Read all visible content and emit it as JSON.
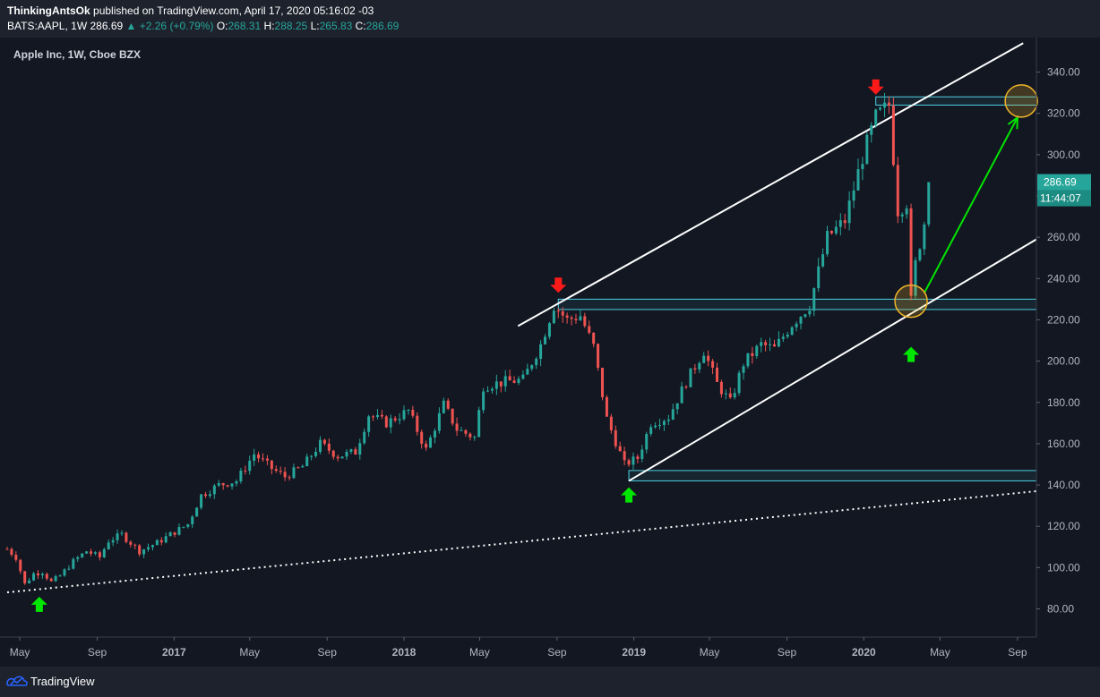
{
  "header": {
    "author": "ThinkingAntsOk",
    "published": "published on TradingView.com, April 17, 2020 05:16:02 -03",
    "symbol": "BATS:AAPL, 1W",
    "last": "286.69",
    "change": "▲ +2.26 (+0.79%)",
    "o_label": "O:",
    "o": "268.31",
    "h_label": "H:",
    "h": "288.25",
    "l_label": "L:",
    "l": "265.83",
    "c_label": "C:",
    "c": "286.69"
  },
  "footer": {
    "brand": "TradingView",
    "logo_icon": "tradingview-logo-icon"
  },
  "colors": {
    "background": "#131722",
    "up": "#26a69a",
    "down": "#ef5350",
    "zone": "#4dd0e1",
    "arrow_up": "#00e600",
    "arrow_down": "#ff1a1a",
    "circle": "#f0b429",
    "axis_text": "#b2b5be"
  },
  "chart_data": {
    "type": "candlestick",
    "title": "Apple Inc, 1W, Cboe BZX",
    "ylim": [
      70,
      350
    ],
    "y_ticks": [
      80,
      100,
      120,
      140,
      160,
      180,
      200,
      220,
      240,
      260,
      280,
      300,
      320,
      340
    ],
    "x_range": [
      "2016-04-11",
      "2020-10-01"
    ],
    "x_ticks": [
      {
        "label": "May",
        "date": "2016-05-01"
      },
      {
        "label": "Sep",
        "date": "2016-09-01"
      },
      {
        "label": "2017",
        "date": "2017-01-01"
      },
      {
        "label": "May",
        "date": "2017-05-01"
      },
      {
        "label": "Sep",
        "date": "2017-09-01"
      },
      {
        "label": "2018",
        "date": "2018-01-01"
      },
      {
        "label": "May",
        "date": "2018-05-01"
      },
      {
        "label": "Sep",
        "date": "2018-09-01"
      },
      {
        "label": "2019",
        "date": "2019-01-01"
      },
      {
        "label": "May",
        "date": "2019-05-01"
      },
      {
        "label": "Sep",
        "date": "2019-09-01"
      },
      {
        "label": "2020",
        "date": "2020-01-01"
      },
      {
        "label": "May",
        "date": "2020-05-01"
      },
      {
        "label": "Sep",
        "date": "2020-09-01"
      }
    ],
    "last_price": {
      "label": "286.69",
      "value": 286.69
    },
    "countdown": "11:44:07",
    "series": [
      {
        "date": "2016-04-11",
        "close": 109
      },
      {
        "date": "2016-04-25",
        "close": 105
      },
      {
        "date": "2016-05-09",
        "close": 92
      },
      {
        "date": "2016-05-23",
        "close": 97
      },
      {
        "date": "2016-06-06",
        "close": 98
      },
      {
        "date": "2016-06-20",
        "close": 93
      },
      {
        "date": "2016-07-04",
        "close": 96
      },
      {
        "date": "2016-07-25",
        "close": 103
      },
      {
        "date": "2016-08-15",
        "close": 108
      },
      {
        "date": "2016-09-05",
        "close": 105
      },
      {
        "date": "2016-09-19",
        "close": 113
      },
      {
        "date": "2016-10-10",
        "close": 116
      },
      {
        "date": "2016-11-07",
        "close": 108
      },
      {
        "date": "2016-12-05",
        "close": 112
      },
      {
        "date": "2016-12-26",
        "close": 116
      },
      {
        "date": "2017-01-23",
        "close": 121
      },
      {
        "date": "2017-02-13",
        "close": 135
      },
      {
        "date": "2017-03-13",
        "close": 140
      },
      {
        "date": "2017-04-10",
        "close": 142
      },
      {
        "date": "2017-05-08",
        "close": 155
      },
      {
        "date": "2017-06-05",
        "close": 148
      },
      {
        "date": "2017-06-26",
        "close": 144
      },
      {
        "date": "2017-07-24",
        "close": 149
      },
      {
        "date": "2017-08-21",
        "close": 160
      },
      {
        "date": "2017-09-18",
        "close": 154
      },
      {
        "date": "2017-10-16",
        "close": 156
      },
      {
        "date": "2017-11-06",
        "close": 174
      },
      {
        "date": "2017-12-04",
        "close": 170
      },
      {
        "date": "2018-01-08",
        "close": 176
      },
      {
        "date": "2018-02-05",
        "close": 157
      },
      {
        "date": "2018-03-05",
        "close": 179
      },
      {
        "date": "2018-03-26",
        "close": 167
      },
      {
        "date": "2018-04-23",
        "close": 163
      },
      {
        "date": "2018-05-07",
        "close": 188
      },
      {
        "date": "2018-06-11",
        "close": 190
      },
      {
        "date": "2018-07-09",
        "close": 191
      },
      {
        "date": "2018-08-06",
        "close": 208
      },
      {
        "date": "2018-08-27",
        "close": 227
      },
      {
        "date": "2018-09-17",
        "close": 220
      },
      {
        "date": "2018-10-08",
        "close": 222
      },
      {
        "date": "2018-10-29",
        "close": 207
      },
      {
        "date": "2018-11-19",
        "close": 172
      },
      {
        "date": "2018-12-17",
        "close": 150
      },
      {
        "date": "2019-01-07",
        "close": 153
      },
      {
        "date": "2019-01-28",
        "close": 170
      },
      {
        "date": "2019-02-25",
        "close": 173
      },
      {
        "date": "2019-03-25",
        "close": 190
      },
      {
        "date": "2019-04-22",
        "close": 205
      },
      {
        "date": "2019-05-13",
        "close": 189
      },
      {
        "date": "2019-06-03",
        "close": 180
      },
      {
        "date": "2019-06-24",
        "close": 199
      },
      {
        "date": "2019-07-22",
        "close": 208
      },
      {
        "date": "2019-08-12",
        "close": 206
      },
      {
        "date": "2019-09-09",
        "close": 218
      },
      {
        "date": "2019-10-07",
        "close": 227
      },
      {
        "date": "2019-11-04",
        "close": 260
      },
      {
        "date": "2019-12-02",
        "close": 268
      },
      {
        "date": "2019-12-30",
        "close": 299
      },
      {
        "date": "2020-01-20",
        "close": 318
      },
      {
        "date": "2020-02-10",
        "close": 324
      },
      {
        "date": "2020-02-24",
        "close": 273
      },
      {
        "date": "2020-03-09",
        "close": 277
      },
      {
        "date": "2020-03-16",
        "close": 229
      },
      {
        "date": "2020-03-23",
        "close": 247
      },
      {
        "date": "2020-04-06",
        "close": 267
      },
      {
        "date": "2020-04-13",
        "close": 286.69
      }
    ],
    "zones": [
      {
        "from": 225,
        "to": 230,
        "start": "2018-09-03"
      },
      {
        "from": 142,
        "to": 147,
        "start": "2018-12-24"
      },
      {
        "from": 324,
        "to": 328,
        "start": "2020-01-20"
      }
    ],
    "trendlines": [
      {
        "style": "solid",
        "points": [
          {
            "date": "2018-07-01",
            "price": 217
          },
          {
            "date": "2020-09-10",
            "price": 354
          }
        ]
      },
      {
        "style": "solid",
        "points": [
          {
            "date": "2018-12-24",
            "price": 142
          },
          {
            "date": "2020-10-01",
            "price": 259
          }
        ]
      },
      {
        "style": "dotted",
        "points": [
          {
            "date": "2016-04-11",
            "price": 88
          },
          {
            "date": "2020-10-01",
            "price": 137
          }
        ]
      }
    ],
    "arrows_up": [
      {
        "date": "2016-06-01",
        "price": 82
      },
      {
        "date": "2018-12-24",
        "price": 135
      },
      {
        "date": "2020-03-16",
        "price": 203
      }
    ],
    "arrows_down": [
      {
        "date": "2018-09-03",
        "price": 237
      },
      {
        "date": "2020-01-20",
        "price": 333
      }
    ],
    "circles": [
      {
        "date": "2020-03-16",
        "price": 229
      },
      {
        "date": "2020-09-07",
        "price": 326
      }
    ],
    "projection": {
      "from": {
        "date": "2020-04-06",
        "price": 233
      },
      "to": {
        "date": "2020-09-01",
        "price": 318
      }
    }
  }
}
